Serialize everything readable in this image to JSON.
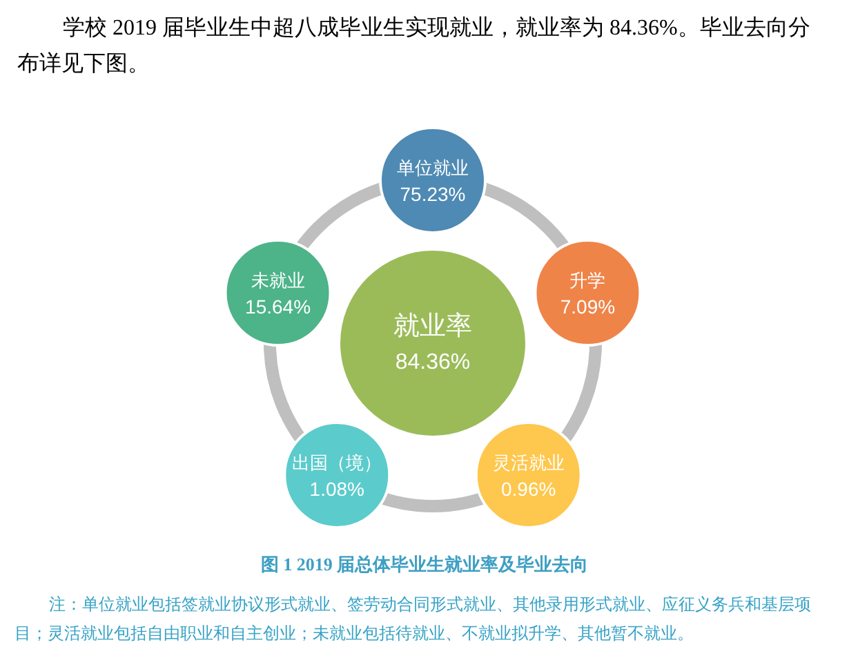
{
  "chart_data": {
    "type": "other",
    "title": "图 1 2019 届总体毕业生就业率及毕业去向",
    "categories": [
      "就业率",
      "单位就业",
      "升学",
      "灵活就业",
      "出国（境）",
      "未就业"
    ],
    "values": [
      84.36,
      75.23,
      7.09,
      0.96,
      1.08,
      15.64
    ],
    "value_labels": [
      "84.36%",
      "75.23%",
      "7.09%",
      "0.96%",
      "1.08%",
      "15.64%"
    ],
    "colors": [
      "#9bbb59",
      "#4e8ab3",
      "#ef8449",
      "#fec74d",
      "#5ccbcb",
      "#4db389"
    ],
    "annotations": [
      "学校 2019 届毕业生中超八成毕业生实现就业，就业率为 84.36%。毕业去向分布详见下图。",
      "注：单位就业包括签就业协议形式就业、签劳动合同形式就业、其他录用形式就业、应征义务兵和基层项目；灵活就业包括自由职业和自主创业；未就业包括待就业、不就业拟升学、其他暂不就业。"
    ]
  }
}
